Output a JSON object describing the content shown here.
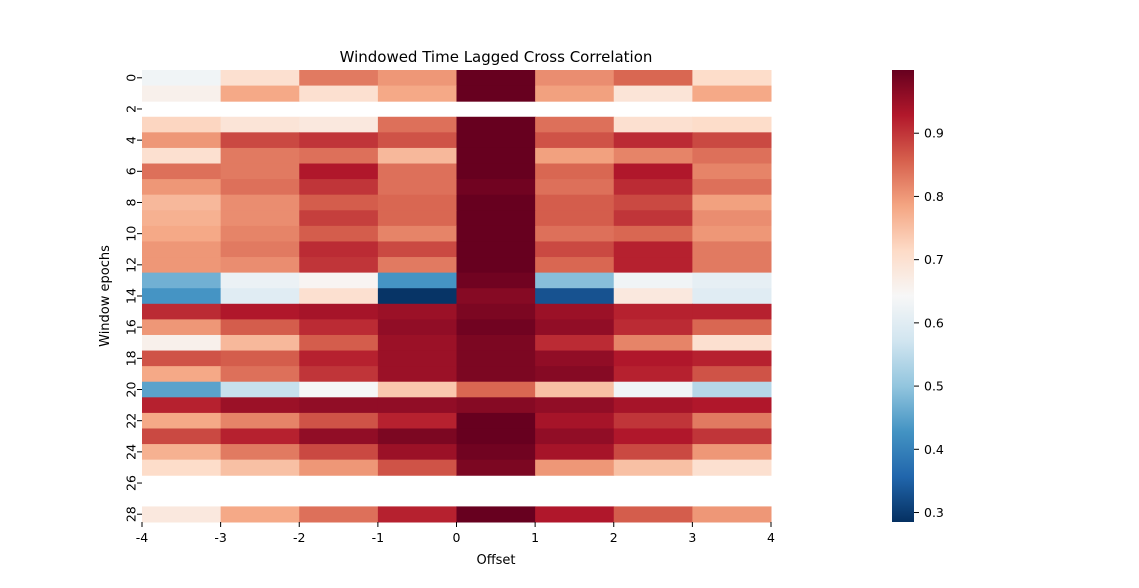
{
  "chart_data": {
    "type": "heatmap",
    "title": "Windowed Time Lagged Cross Correlation",
    "xlabel": "Offset",
    "ylabel": "Window epochs",
    "x_tick_labels": [
      "-4",
      "-3",
      "-2",
      "-1",
      "0",
      "1",
      "2",
      "3",
      "4"
    ],
    "y_tick_labels": [
      "0",
      "2",
      "4",
      "6",
      "8",
      "10",
      "12",
      "14",
      "16",
      "18",
      "20",
      "22",
      "24",
      "26",
      "28"
    ],
    "colorbar": {
      "min": 0.285,
      "max": 1.0,
      "ticks": [
        0.3,
        0.4,
        0.5,
        0.6,
        0.7,
        0.8,
        0.9
      ],
      "tick_labels": [
        "0.3",
        "0.4",
        "0.5",
        "0.6",
        "0.7",
        "0.8",
        "0.9"
      ],
      "colormap": "RdBu_r"
    },
    "n_rows": 29,
    "n_cols": 8,
    "values": [
      [
        0.63,
        0.7,
        0.83,
        0.8,
        1.0,
        0.81,
        0.85,
        0.71
      ],
      [
        0.66,
        0.78,
        0.7,
        0.78,
        1.0,
        0.79,
        0.69,
        0.78
      ],
      [
        null,
        null,
        null,
        null,
        null,
        null,
        null,
        null
      ],
      [
        0.72,
        0.69,
        0.68,
        0.84,
        1.0,
        0.84,
        0.7,
        0.71
      ],
      [
        0.8,
        0.88,
        0.9,
        0.87,
        1.0,
        0.87,
        0.91,
        0.88
      ],
      [
        0.7,
        0.83,
        0.84,
        0.76,
        1.0,
        0.79,
        0.82,
        0.84
      ],
      [
        0.84,
        0.83,
        0.93,
        0.84,
        1.0,
        0.85,
        0.93,
        0.82
      ],
      [
        0.8,
        0.84,
        0.9,
        0.84,
        0.99,
        0.84,
        0.91,
        0.84
      ],
      [
        0.76,
        0.81,
        0.86,
        0.85,
        1.0,
        0.86,
        0.88,
        0.79
      ],
      [
        0.77,
        0.81,
        0.89,
        0.85,
        1.0,
        0.86,
        0.9,
        0.81
      ],
      [
        0.78,
        0.82,
        0.86,
        0.82,
        1.0,
        0.84,
        0.85,
        0.8
      ],
      [
        0.8,
        0.83,
        0.91,
        0.88,
        1.0,
        0.88,
        0.92,
        0.83
      ],
      [
        0.8,
        0.81,
        0.9,
        0.83,
        1.0,
        0.85,
        0.92,
        0.83
      ],
      [
        0.47,
        0.62,
        0.65,
        0.43,
        0.99,
        0.49,
        0.63,
        0.61
      ],
      [
        0.43,
        0.6,
        0.7,
        0.29,
        0.97,
        0.33,
        0.68,
        0.6
      ],
      [
        0.91,
        0.93,
        0.94,
        0.95,
        0.98,
        0.95,
        0.92,
        0.92
      ],
      [
        0.8,
        0.86,
        0.91,
        0.96,
        0.99,
        0.96,
        0.91,
        0.85
      ],
      [
        0.66,
        0.76,
        0.86,
        0.95,
        0.98,
        0.91,
        0.82,
        0.7
      ],
      [
        0.87,
        0.86,
        0.92,
        0.95,
        0.98,
        0.96,
        0.93,
        0.92
      ],
      [
        0.78,
        0.84,
        0.9,
        0.95,
        0.98,
        0.97,
        0.92,
        0.87
      ],
      [
        0.45,
        0.56,
        0.64,
        0.74,
        0.85,
        0.75,
        0.63,
        0.54
      ],
      [
        0.92,
        0.95,
        0.96,
        0.96,
        0.97,
        0.96,
        0.94,
        0.93
      ],
      [
        0.78,
        0.82,
        0.87,
        0.92,
        1.0,
        0.94,
        0.9,
        0.83
      ],
      [
        0.88,
        0.92,
        0.96,
        0.98,
        1.0,
        0.96,
        0.93,
        0.9
      ],
      [
        0.77,
        0.83,
        0.88,
        0.95,
        0.99,
        0.94,
        0.88,
        0.8
      ],
      [
        0.71,
        0.75,
        0.8,
        0.87,
        0.98,
        0.8,
        0.75,
        0.7
      ],
      [
        null,
        null,
        null,
        null,
        null,
        null,
        null,
        null
      ],
      [
        null,
        null,
        null,
        null,
        null,
        null,
        null,
        null
      ],
      [
        0.68,
        0.78,
        0.84,
        0.92,
        1.0,
        0.93,
        0.86,
        0.8
      ]
    ]
  }
}
